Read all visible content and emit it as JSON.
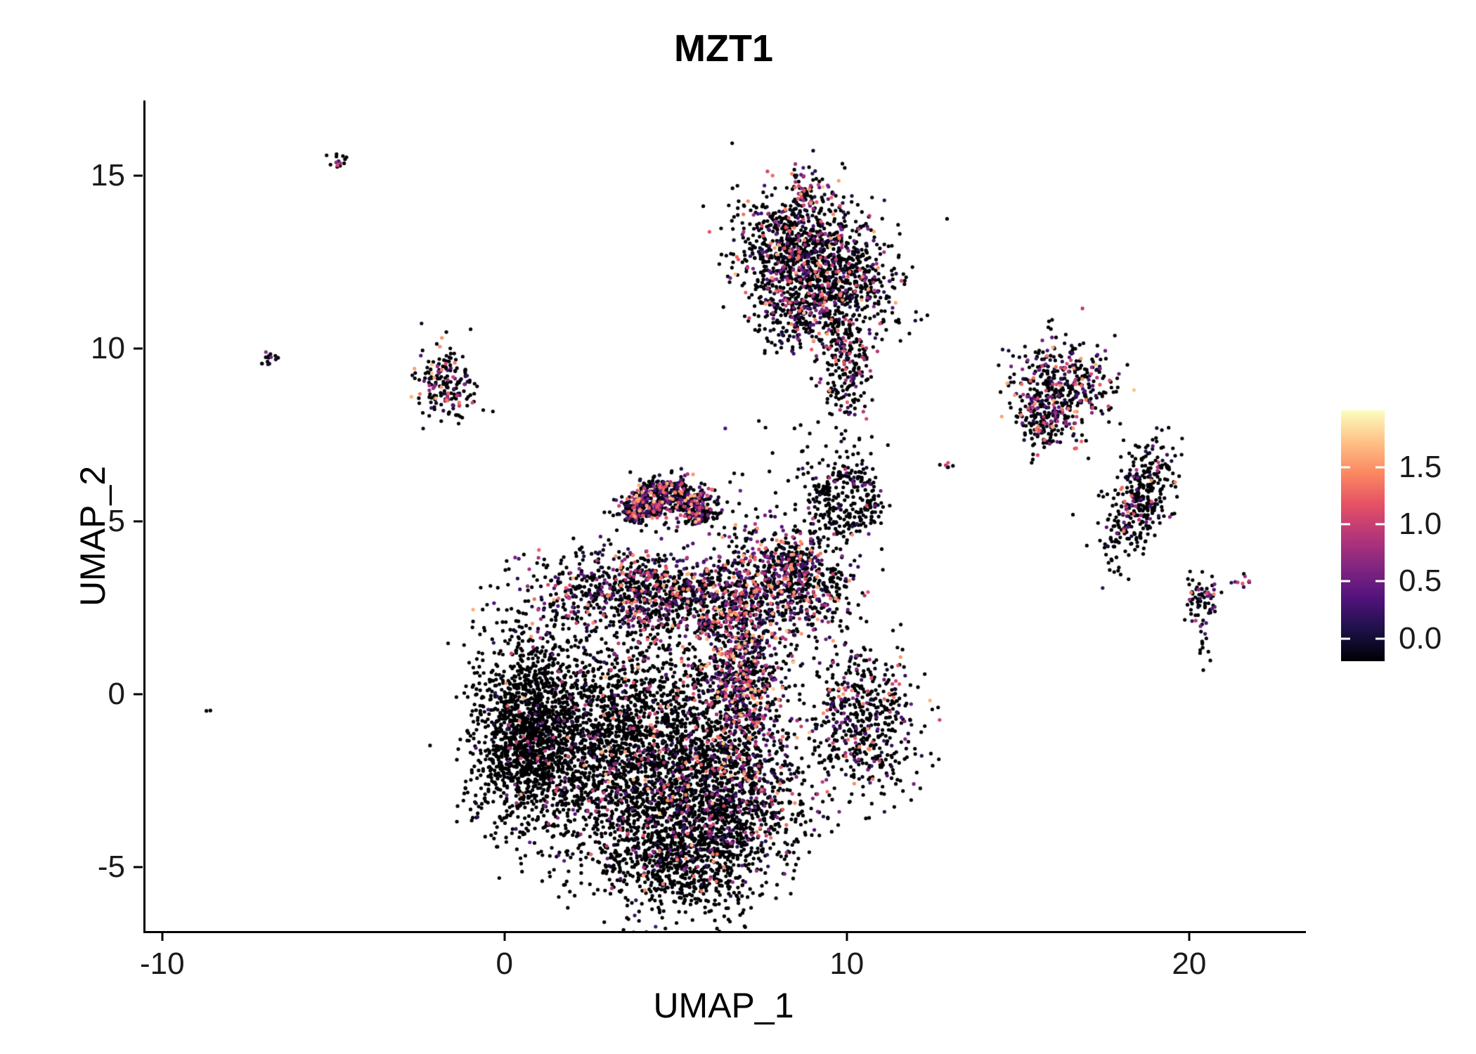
{
  "title": "MZT1",
  "chart_data": {
    "type": "scatter",
    "title": "MZT1",
    "xlabel": "UMAP_1",
    "ylabel": "UMAP_2",
    "xlim": [
      -10.55,
      23.35
    ],
    "ylim": [
      -6.85,
      17.17
    ],
    "x_ticks": [
      -10,
      0,
      10,
      20
    ],
    "y_ticks": [
      -5,
      0,
      5,
      10,
      15
    ],
    "grid": false,
    "point_radius_px": 2.6,
    "legend": {
      "type": "colorbar",
      "position": "right",
      "ticks": [
        0.0,
        0.5,
        1.0,
        1.5
      ],
      "tick_labels": [
        "0.0",
        "0.5",
        "1.0",
        "1.5"
      ],
      "bar_range": [
        -0.2,
        2.0
      ]
    },
    "colormap": {
      "name": "magma",
      "stops": [
        "#000004",
        "#1d1147",
        "#51127c",
        "#822681",
        "#b63679",
        "#e65164",
        "#fb8861",
        "#fec287",
        "#fcfdbf"
      ],
      "value_domain": [
        0,
        1.9
      ]
    },
    "clusters": [
      {
        "name": "main-left-lobe",
        "shape": "gauss",
        "cx": 0.7,
        "cy": -1.1,
        "sx": 0.85,
        "sy": 1.35,
        "rot": 0,
        "n": 1500,
        "pos_frac": 0.05,
        "v_pow": 2.2,
        "v_max": 1.6
      },
      {
        "name": "main-core",
        "shape": "gauss",
        "cx": 3.9,
        "cy": -1.6,
        "sx": 1.7,
        "sy": 1.7,
        "rot": 0,
        "n": 2600,
        "pos_frac": 0.15,
        "v_pow": 2.2,
        "v_max": 1.7
      },
      {
        "name": "main-bottom-lobe",
        "shape": "gauss",
        "cx": 5.0,
        "cy": -4.7,
        "sx": 1.25,
        "sy": 0.85,
        "rot": 0,
        "n": 800,
        "pos_frac": 0.12,
        "v_pow": 2.2,
        "v_max": 1.5
      },
      {
        "name": "main-upper-band",
        "shape": "gauss",
        "cx": 4.4,
        "cy": 2.9,
        "sx": 1.9,
        "sy": 0.65,
        "rot": 0,
        "n": 1100,
        "pos_frac": 0.45,
        "v_pow": 1.8,
        "v_max": 1.6
      },
      {
        "name": "main-top-arc",
        "shape": "arc",
        "cx": 4.7,
        "cy": 4.7,
        "ring_r": 1.15,
        "ring_w": 0.3,
        "arc_start": 165,
        "arc_end": 15,
        "n": 650,
        "pos_frac": 0.5,
        "v_pow": 1.8,
        "v_max": 1.7
      },
      {
        "name": "main-right-band",
        "shape": "gauss",
        "cx": 6.9,
        "cy": 0.9,
        "sx": 0.6,
        "sy": 1.9,
        "rot": 0,
        "n": 1100,
        "pos_frac": 0.55,
        "v_pow": 1.7,
        "v_max": 1.7
      },
      {
        "name": "main-right-bottom",
        "shape": "gauss",
        "cx": 6.4,
        "cy": -3.0,
        "sx": 1.3,
        "sy": 1.1,
        "rot": 0,
        "n": 800,
        "pos_frac": 0.28,
        "v_pow": 2.0,
        "v_max": 1.5
      },
      {
        "name": "blob-right-mid",
        "shape": "gauss",
        "cx": 8.7,
        "cy": 3.1,
        "sx": 0.75,
        "sy": 0.7,
        "rot": 0,
        "n": 420,
        "pos_frac": 0.4,
        "v_pow": 1.8,
        "v_max": 1.6
      },
      {
        "name": "blob-mid-upper",
        "shape": "gauss",
        "cx": 8.3,
        "cy": 4.0,
        "sx": 0.5,
        "sy": 0.5,
        "rot": 0,
        "n": 150,
        "pos_frac": 0.45,
        "v_pow": 1.8,
        "v_max": 1.6
      },
      {
        "name": "ring-right",
        "shape": "ring",
        "cx": 9.9,
        "cy": 5.6,
        "ring_r": 0.75,
        "ring_w": 0.22,
        "arc_start": 0,
        "arc_end": 360,
        "n": 260,
        "pos_frac": 0.12,
        "v_pow": 2.0,
        "v_max": 1.2
      },
      {
        "name": "blob-right-small",
        "shape": "gauss",
        "cx": 10.4,
        "cy": -0.7,
        "sx": 0.75,
        "sy": 1.05,
        "rot": 0,
        "n": 520,
        "pos_frac": 0.3,
        "v_pow": 2.0,
        "v_max": 1.6
      },
      {
        "name": "top-blob-a",
        "shape": "gauss",
        "cx": 8.3,
        "cy": 12.9,
        "sx": 0.85,
        "sy": 0.8,
        "rot": 0,
        "n": 620,
        "pos_frac": 0.35,
        "v_pow": 1.9,
        "v_max": 1.7
      },
      {
        "name": "top-blob-b",
        "shape": "gauss",
        "cx": 9.8,
        "cy": 12.1,
        "sx": 0.85,
        "sy": 1.0,
        "rot": 0,
        "n": 620,
        "pos_frac": 0.3,
        "v_pow": 1.9,
        "v_max": 1.6
      },
      {
        "name": "top-blob-c",
        "shape": "gauss",
        "cx": 8.6,
        "cy": 11.1,
        "sx": 0.7,
        "sy": 0.6,
        "rot": 0,
        "n": 300,
        "pos_frac": 0.3,
        "v_pow": 1.9,
        "v_max": 1.5
      },
      {
        "name": "top-tail",
        "shape": "gauss",
        "cx": 9.9,
        "cy": 9.4,
        "sx": 0.35,
        "sy": 0.85,
        "rot": 0,
        "n": 200,
        "pos_frac": 0.3,
        "v_pow": 1.9,
        "v_max": 1.5
      },
      {
        "name": "top-small",
        "shape": "gauss",
        "cx": 8.72,
        "cy": 14.45,
        "sx": 0.22,
        "sy": 0.42,
        "rot": 0,
        "n": 70,
        "pos_frac": 0.45,
        "v_pow": 1.8,
        "v_max": 1.6
      },
      {
        "name": "left-small",
        "shape": "gauss",
        "cx": -1.8,
        "cy": 9.0,
        "sx": 0.42,
        "sy": 0.55,
        "rot": 0,
        "n": 190,
        "pos_frac": 0.45,
        "v_pow": 1.8,
        "v_max": 1.7
      },
      {
        "name": "left-tiny",
        "shape": "gauss",
        "cx": -6.9,
        "cy": 9.7,
        "sx": 0.12,
        "sy": 0.14,
        "rot": 0,
        "n": 14,
        "pos_frac": 0.5,
        "v_pow": 1.8,
        "v_max": 1.3
      },
      {
        "name": "topleft-tiny",
        "shape": "gauss",
        "cx": -4.85,
        "cy": 15.4,
        "sx": 0.18,
        "sy": 0.09,
        "rot": 25,
        "n": 14,
        "pos_frac": 0.6,
        "v_pow": 1.6,
        "v_max": 1.2
      },
      {
        "name": "left-single",
        "shape": "gauss",
        "cx": -8.7,
        "cy": -0.45,
        "sx": 0.05,
        "sy": 0.05,
        "rot": 0,
        "n": 2,
        "pos_frac": 0.0,
        "v_pow": 2.0,
        "v_max": 0
      },
      {
        "name": "right-a",
        "shape": "gauss",
        "cx": 16.2,
        "cy": 8.9,
        "sx": 0.75,
        "sy": 0.7,
        "rot": 0,
        "n": 420,
        "pos_frac": 0.5,
        "v_pow": 1.8,
        "v_max": 1.7
      },
      {
        "name": "right-a2",
        "shape": "gauss",
        "cx": 15.6,
        "cy": 7.9,
        "sx": 0.35,
        "sy": 0.4,
        "rot": 0,
        "n": 110,
        "pos_frac": 0.4,
        "v_pow": 1.8,
        "v_max": 1.5
      },
      {
        "name": "right-b",
        "shape": "gauss",
        "cx": 18.5,
        "cy": 5.7,
        "sx": 0.42,
        "sy": 0.95,
        "rot": -25,
        "n": 360,
        "pos_frac": 0.3,
        "v_pow": 1.9,
        "v_max": 1.5
      },
      {
        "name": "far-right-small",
        "shape": "gauss",
        "cx": 20.35,
        "cy": 2.7,
        "sx": 0.24,
        "sy": 0.34,
        "rot": 0,
        "n": 70,
        "pos_frac": 0.4,
        "v_pow": 1.8,
        "v_max": 1.4
      },
      {
        "name": "far-right-tail",
        "shape": "gauss",
        "cx": 20.35,
        "cy": 1.4,
        "sx": 0.1,
        "sy": 0.3,
        "rot": 0,
        "n": 12,
        "pos_frac": 0.2,
        "v_pow": 1.8,
        "v_max": 1.0
      },
      {
        "name": "far-right-tiny",
        "shape": "gauss",
        "cx": 21.5,
        "cy": 3.3,
        "sx": 0.16,
        "sy": 0.09,
        "rot": 15,
        "n": 10,
        "pos_frac": 0.75,
        "v_pow": 1.4,
        "v_max": 1.3
      },
      {
        "name": "mid-pair",
        "shape": "gauss",
        "cx": 12.85,
        "cy": 6.6,
        "sx": 0.12,
        "sy": 0.08,
        "rot": 0,
        "n": 6,
        "pos_frac": 0.8,
        "v_pow": 1.2,
        "v_max": 1.6
      },
      {
        "name": "bridge-sparse",
        "shape": "gauss",
        "cx": 9.2,
        "cy": 6.4,
        "sx": 0.95,
        "sy": 0.85,
        "rot": 0,
        "n": 60,
        "pos_frac": 0.15,
        "v_pow": 2.0,
        "v_max": 1.2
      }
    ]
  }
}
